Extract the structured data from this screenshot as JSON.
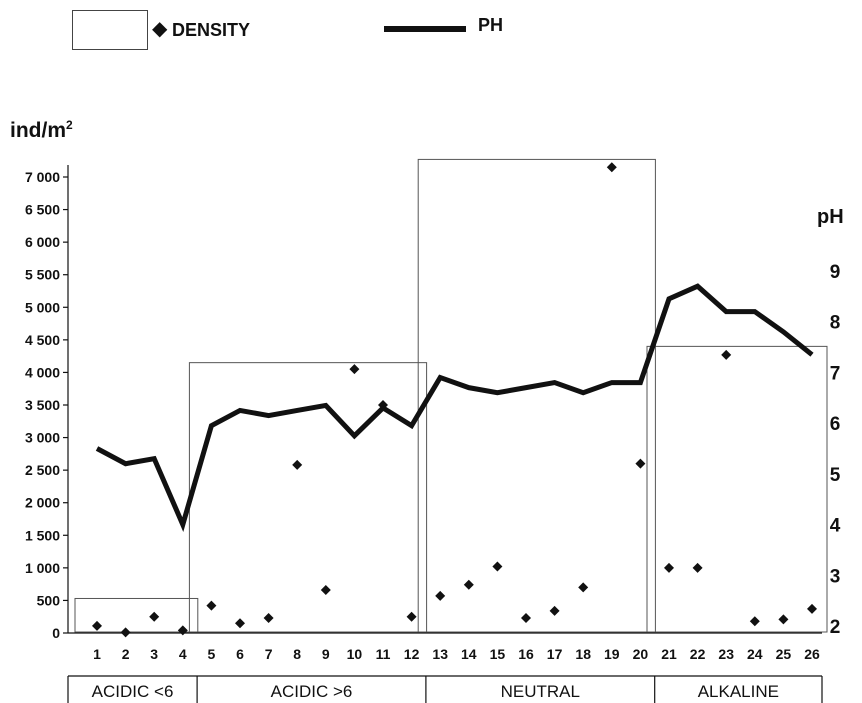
{
  "legend": {
    "density_marker": "◆",
    "density_label": "DENSITY",
    "ph_label": "PH"
  },
  "chart_data": {
    "type": "scatter+line",
    "ylabel_left": "ind/m",
    "ylabel_left_sup": "2",
    "ylabel_right": "pH",
    "x": [
      1,
      2,
      3,
      4,
      5,
      6,
      7,
      8,
      9,
      10,
      11,
      12,
      13,
      14,
      15,
      16,
      17,
      18,
      19,
      20,
      21,
      22,
      23,
      24,
      25,
      26
    ],
    "x_ticks": [
      "1",
      "2",
      "3",
      "4",
      "5",
      "6",
      "7",
      "8",
      "9",
      "10",
      "11",
      "12",
      "13",
      "14",
      "15",
      "16",
      "17",
      "18",
      "19",
      "20",
      "21",
      "22",
      "23",
      "24",
      "25",
      "26"
    ],
    "y_left_ticks": [
      0,
      500,
      1000,
      1500,
      2000,
      2500,
      3000,
      3500,
      4000,
      4500,
      5000,
      5500,
      6000,
      6500,
      7000
    ],
    "y_left_tick_labels": [
      "0",
      "500",
      "1 000",
      "1 500",
      "2 000",
      "2 500",
      "3 000",
      "3 500",
      "4 000",
      "4 500",
      "5 000",
      "5 500",
      "6 000",
      "6 500",
      "7 000"
    ],
    "ylim_left": [
      0,
      7000
    ],
    "y_right_ticks": [
      2,
      3,
      4,
      5,
      6,
      7,
      8,
      9
    ],
    "y_right_tick_labels": [
      "2",
      "3",
      "4",
      "5",
      "6",
      "7",
      "8",
      "9"
    ],
    "ylim_right": [
      2,
      9.8
    ],
    "series": [
      {
        "name": "DENSITY",
        "kind": "scatter",
        "marker": "diamond",
        "values": [
          110,
          10,
          250,
          40,
          420,
          150,
          230,
          2580,
          660,
          4050,
          3500,
          250,
          570,
          740,
          1020,
          230,
          340,
          700,
          7150,
          2600,
          1000,
          1000,
          4270,
          180,
          210,
          370
        ]
      },
      {
        "name": "PH",
        "kind": "line",
        "values": [
          5.5,
          5.2,
          5.3,
          4.0,
          5.95,
          6.25,
          6.15,
          6.25,
          6.35,
          5.75,
          6.3,
          5.95,
          6.9,
          6.7,
          6.6,
          6.7,
          6.8,
          6.6,
          6.8,
          6.8,
          8.45,
          8.7,
          8.2,
          8.2,
          7.8,
          7.35
        ]
      }
    ],
    "groups": [
      {
        "label": "ACIDIC <6",
        "from": 1,
        "to": 4,
        "max_density": 530
      },
      {
        "label": "ACIDIC >6",
        "from": 5,
        "to": 12,
        "max_density": 4150
      },
      {
        "label": "NEUTRAL",
        "from": 13,
        "to": 20,
        "max_density": 7270
      },
      {
        "label": "ALKALINE",
        "from": 21,
        "to": 26,
        "max_density": 4400
      }
    ],
    "colors": {
      "ink": "#111111",
      "box": "#555555"
    }
  }
}
